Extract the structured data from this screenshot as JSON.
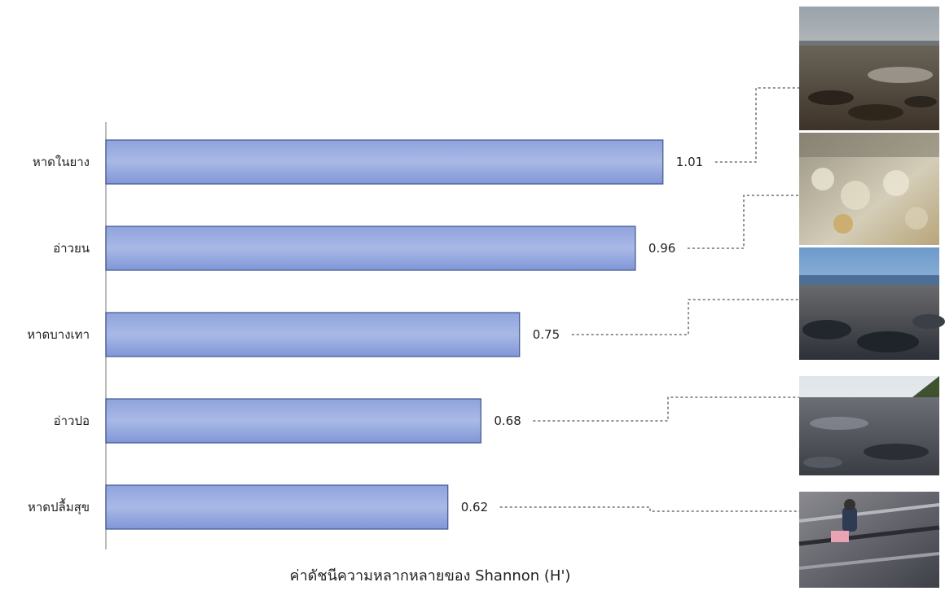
{
  "chart_data": {
    "type": "bar",
    "orientation": "horizontal",
    "categories": [
      "หาดในยาง",
      "อ่าวยน",
      "หาดบางเทา",
      "อ่าวปอ",
      "หาดปลื้มสุข"
    ],
    "values": [
      1.01,
      0.96,
      0.75,
      0.68,
      0.62
    ],
    "value_labels": [
      "1.01",
      "0.96",
      "0.75",
      "0.68",
      "0.62"
    ],
    "title": "",
    "xlabel": "ค่าดัชนีความหลากหลายของ Shannon (H')",
    "ylabel": "",
    "xlim": [
      0,
      1.25
    ],
    "grid": false,
    "legend": "none",
    "colors": {
      "bar_top": "#8fa3dd",
      "bar_mid": "#a9b9e6",
      "bar_bottom": "#8096d6",
      "bar_border": "#3f5690",
      "axis": "#a6a6a6",
      "leader": "#555555"
    }
  }
}
